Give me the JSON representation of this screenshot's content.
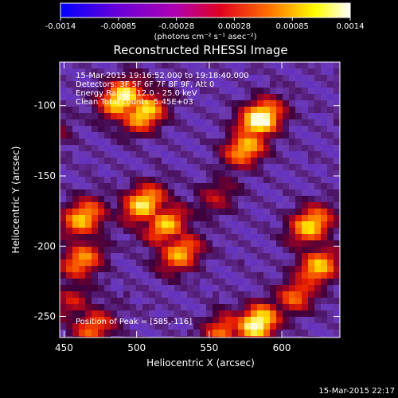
{
  "colorbar": {
    "tick_labels": [
      "-0.0014",
      "-0.00085",
      "-0.00028",
      "0.00028",
      "0.00085",
      "0.0014"
    ],
    "unit_label": "(photons cm⁻² s⁻¹ asec⁻²)",
    "range": [
      -0.0014,
      0.0014
    ],
    "colors": [
      "#0000ff",
      "#6a00d8",
      "#b000b0",
      "#e00020",
      "#ff7000",
      "#ffff00",
      "#ffffff"
    ]
  },
  "chart_data": {
    "type": "heatmap",
    "title": "Reconstructed RHESSI Image",
    "xlabel": "Heliocentric X (arcsec)",
    "ylabel": "Heliocentric Y (arcsec)",
    "xlim": [
      447,
      640
    ],
    "ylim": [
      -265,
      -69
    ],
    "x_ticks": [
      450,
      500,
      550,
      600
    ],
    "y_ticks": [
      -250,
      -200,
      -150,
      -100
    ],
    "info_lines": [
      "15-Mar-2015 19:16:52.000 to 19:18:40.000",
      "Detectors: 3F 5F 6F 7F 8F 9F, Att 0",
      "Energy Range: 12.0 - 25.0 keV",
      "Clean     Total counts: 5.45E+03"
    ],
    "peak_label": "Position of Peak = [585,-116]",
    "peak": [
      585,
      -116
    ]
  },
  "footer": {
    "timestamp": "15-Mar-2015 22:17"
  }
}
